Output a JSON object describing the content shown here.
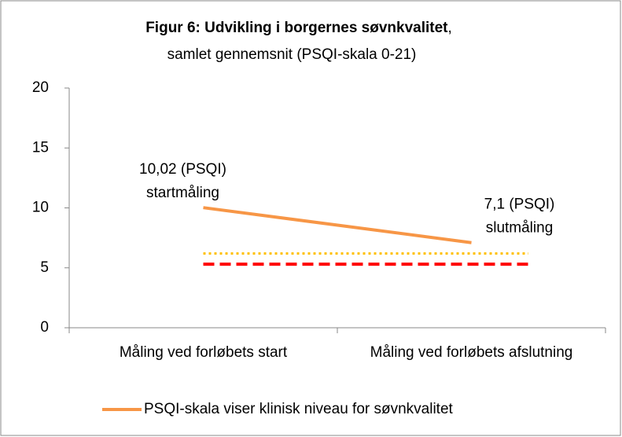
{
  "chart_data": {
    "type": "line",
    "title": [
      {
        "text": "Figur 6: Udvikling i borgernes søvnkvalitet",
        "bold": true
      },
      {
        "text": ",",
        "bold": false
      }
    ],
    "subtitle": "samlet gennemsnit (PSQI-skala 0-21)",
    "categories": [
      "Måling ved forløbets start",
      "Måling ved forløbets afslutning"
    ],
    "series": [
      {
        "name": "PSQI-skala viser klinisk niveau for søvnkvalitet",
        "color": "#f79646",
        "values": [
          10.02,
          7.1
        ],
        "value_labels": [
          "10,02 (PSQI)",
          "7,1 (PSQI)"
        ]
      }
    ],
    "annotations": [
      "startmåling",
      "slutmåling"
    ],
    "reference_lines": [
      {
        "value": 6.2,
        "color": "#ffc000",
        "style": "dotted"
      },
      {
        "value": 5.3,
        "color": "#ff0000",
        "style": "dashed"
      }
    ],
    "ylim": [
      0,
      20
    ],
    "yticks": [
      0,
      5,
      10,
      15,
      20
    ],
    "grid": false,
    "legend": "bottom"
  }
}
